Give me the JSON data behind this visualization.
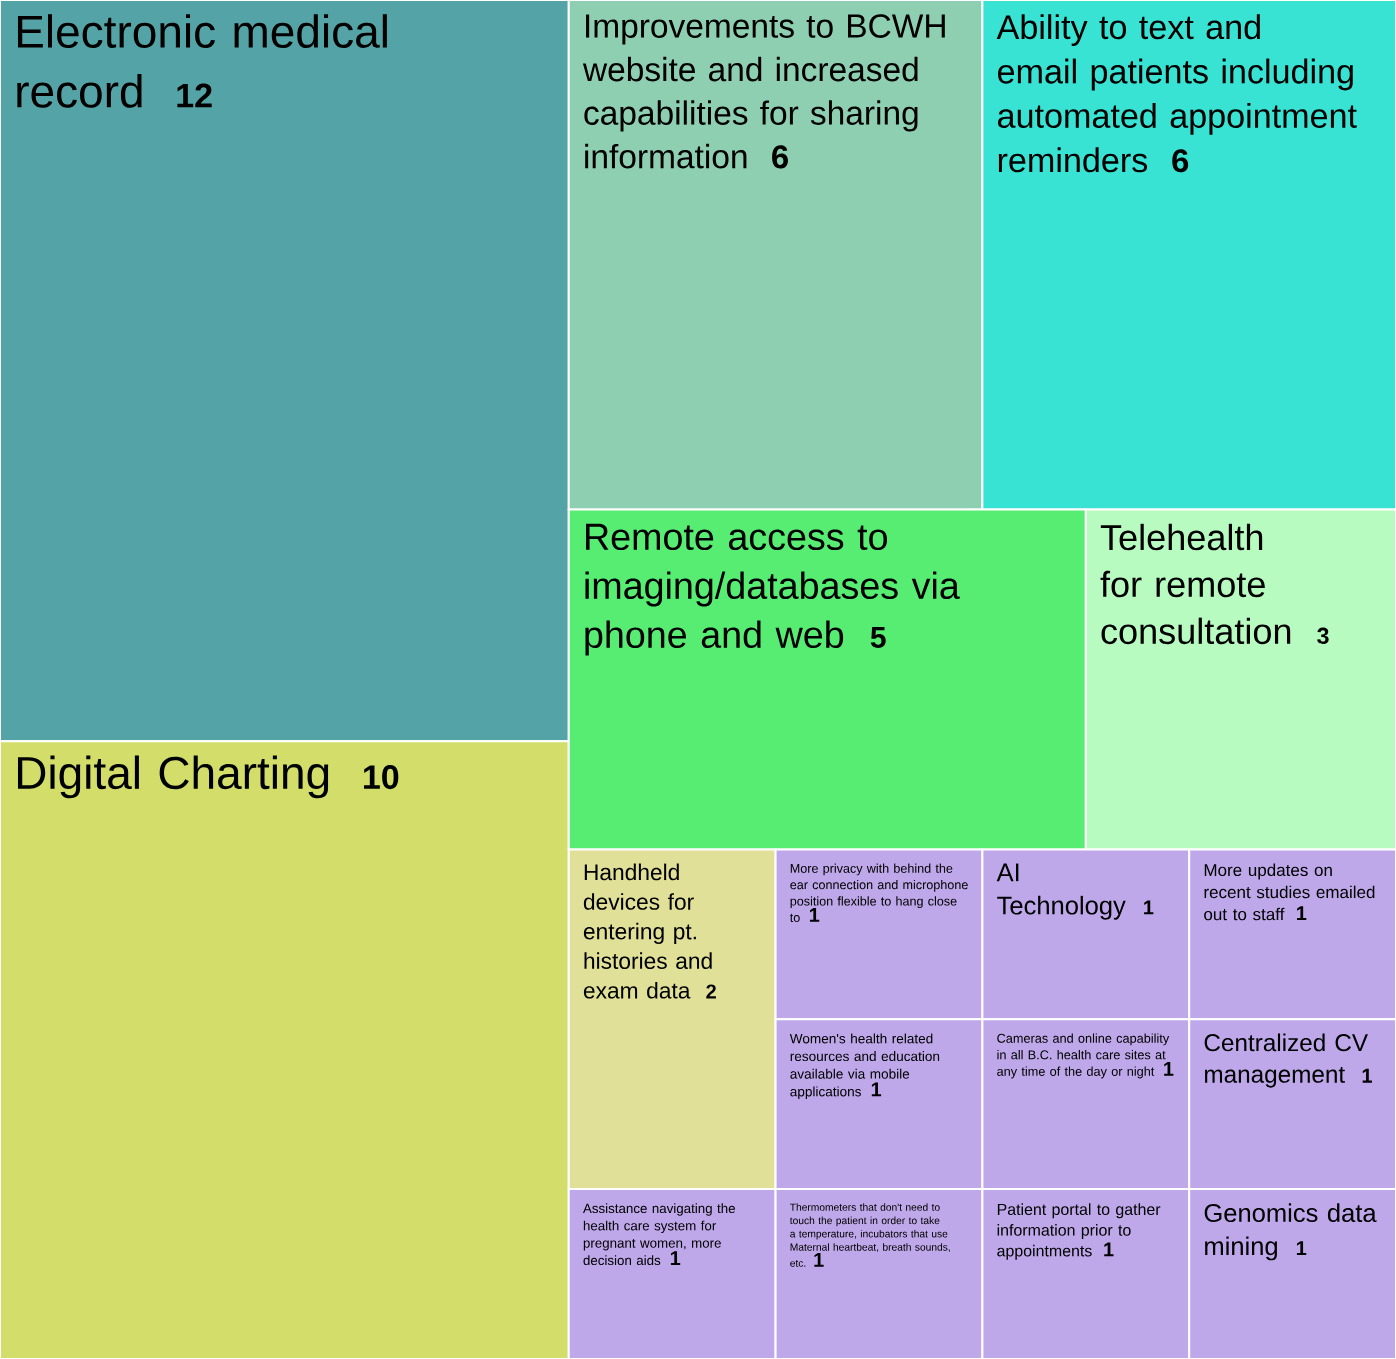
{
  "chart_data": {
    "type": "other",
    "categories": [
      "Electronic medical record",
      "Digital Charting",
      "Improvements to BCWH website and increased capabilities for sharing information",
      "Ability to text and email patients including automated appointment reminders",
      "Remote access to imaging/databases via phone and web",
      "Telehealth for remote consultation",
      "Handheld devices for entering pt. histories and exam data",
      "Assistance navigating the health care system for pregnant women, more decision aids",
      "More privacy with behind the ear connection and microphone position flexible to hang close to",
      "Women's health related resources and education available via mobile applications",
      "Thermometers that don't need to touch the patient in order to take a temperature, incubators that use Maternal heartbeat, breath sounds, etc.",
      "AI Technology",
      "More updates on recent studies emailed out to staff",
      "Cameras and online capability in all B.C. health care sites at any time of the day or night",
      "Patient portal to gather information prior to appointments",
      "Centralized CV management",
      "Genomics data mining"
    ],
    "values": [
      12,
      10,
      6,
      6,
      5,
      3,
      2,
      1,
      1,
      1,
      1,
      1,
      1,
      1,
      1,
      1,
      1
    ],
    "colors": [
      "#54a3a6",
      "#d3de6a",
      "#8ecfb2",
      "#38e3d4",
      "#57ec72",
      "#b8fbc1",
      "#e0e098",
      "#bfa8ea",
      "#bfa8ea",
      "#bfa8ea",
      "#bfa8ea",
      "#bfa8ea",
      "#bfa8ea",
      "#bfa8ea",
      "#bfa8ea",
      "#bfa8ea",
      "#bfa8ea"
    ],
    "data_labels": true
  }
}
